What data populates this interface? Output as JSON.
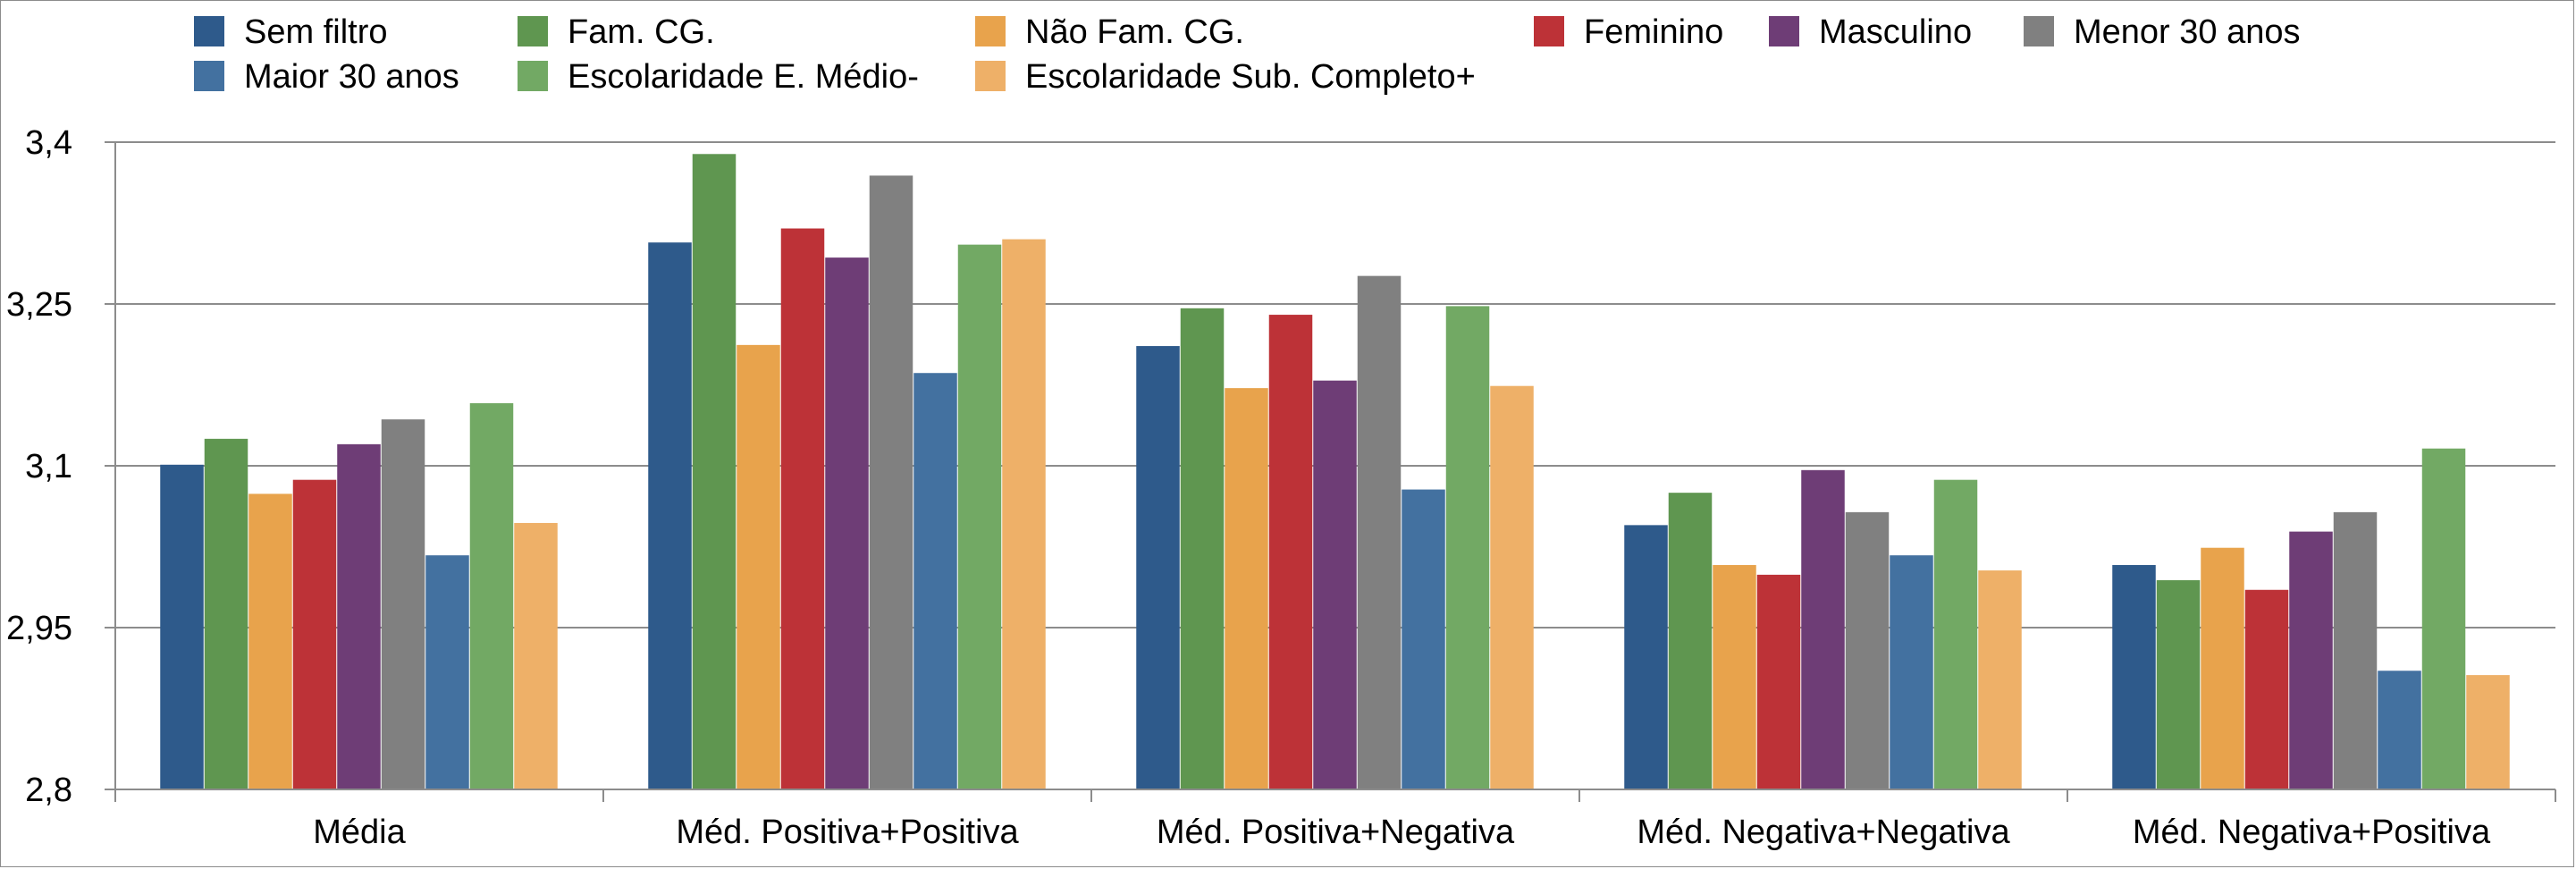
{
  "chart_data": {
    "type": "bar",
    "categories": [
      "Média",
      "Méd. Positiva+Positiva",
      "Méd. Positiva+Negativa",
      "Méd. Negativa+Negativa",
      "Méd. Negativa+Positiva"
    ],
    "series": [
      {
        "name": "Sem filtro",
        "color": "#2e5a8b",
        "values": [
          3.101,
          3.307,
          3.211,
          3.045,
          3.008
        ]
      },
      {
        "name": "Fam. CG.",
        "color": "#5f9650",
        "values": [
          3.125,
          3.389,
          3.246,
          3.075,
          2.994
        ]
      },
      {
        "name": "Não Fam. CG.",
        "color": "#e8a34c",
        "values": [
          3.074,
          3.212,
          3.172,
          3.008,
          3.024
        ]
      },
      {
        "name": "Feminino",
        "color": "#bd3237",
        "values": [
          3.087,
          3.32,
          3.24,
          2.999,
          2.985
        ]
      },
      {
        "name": "Masculino",
        "color": "#6e3d76",
        "values": [
          3.12,
          3.293,
          3.179,
          3.096,
          3.039
        ]
      },
      {
        "name": "Menor 30 anos",
        "color": "#808080",
        "values": [
          3.143,
          3.369,
          3.276,
          3.057,
          3.057
        ]
      },
      {
        "name": "Maior 30 anos",
        "color": "#4371a0",
        "values": [
          3.017,
          3.186,
          3.078,
          3.017,
          2.91
        ]
      },
      {
        "name": "Escolaridade E. Médio-",
        "color": "#72a964",
        "values": [
          3.158,
          3.305,
          3.248,
          3.087,
          3.116
        ]
      },
      {
        "name": "Escolaridade Sub. Completo+",
        "color": "#eeb068",
        "values": [
          3.047,
          3.31,
          3.174,
          3.003,
          2.906
        ]
      }
    ],
    "y_tick_labels": [
      "2,8",
      "2,95",
      "3,1",
      "3,25",
      "3,4"
    ],
    "ylim": [
      2.8,
      3.4
    ],
    "grid": true,
    "legend_position": "top"
  }
}
